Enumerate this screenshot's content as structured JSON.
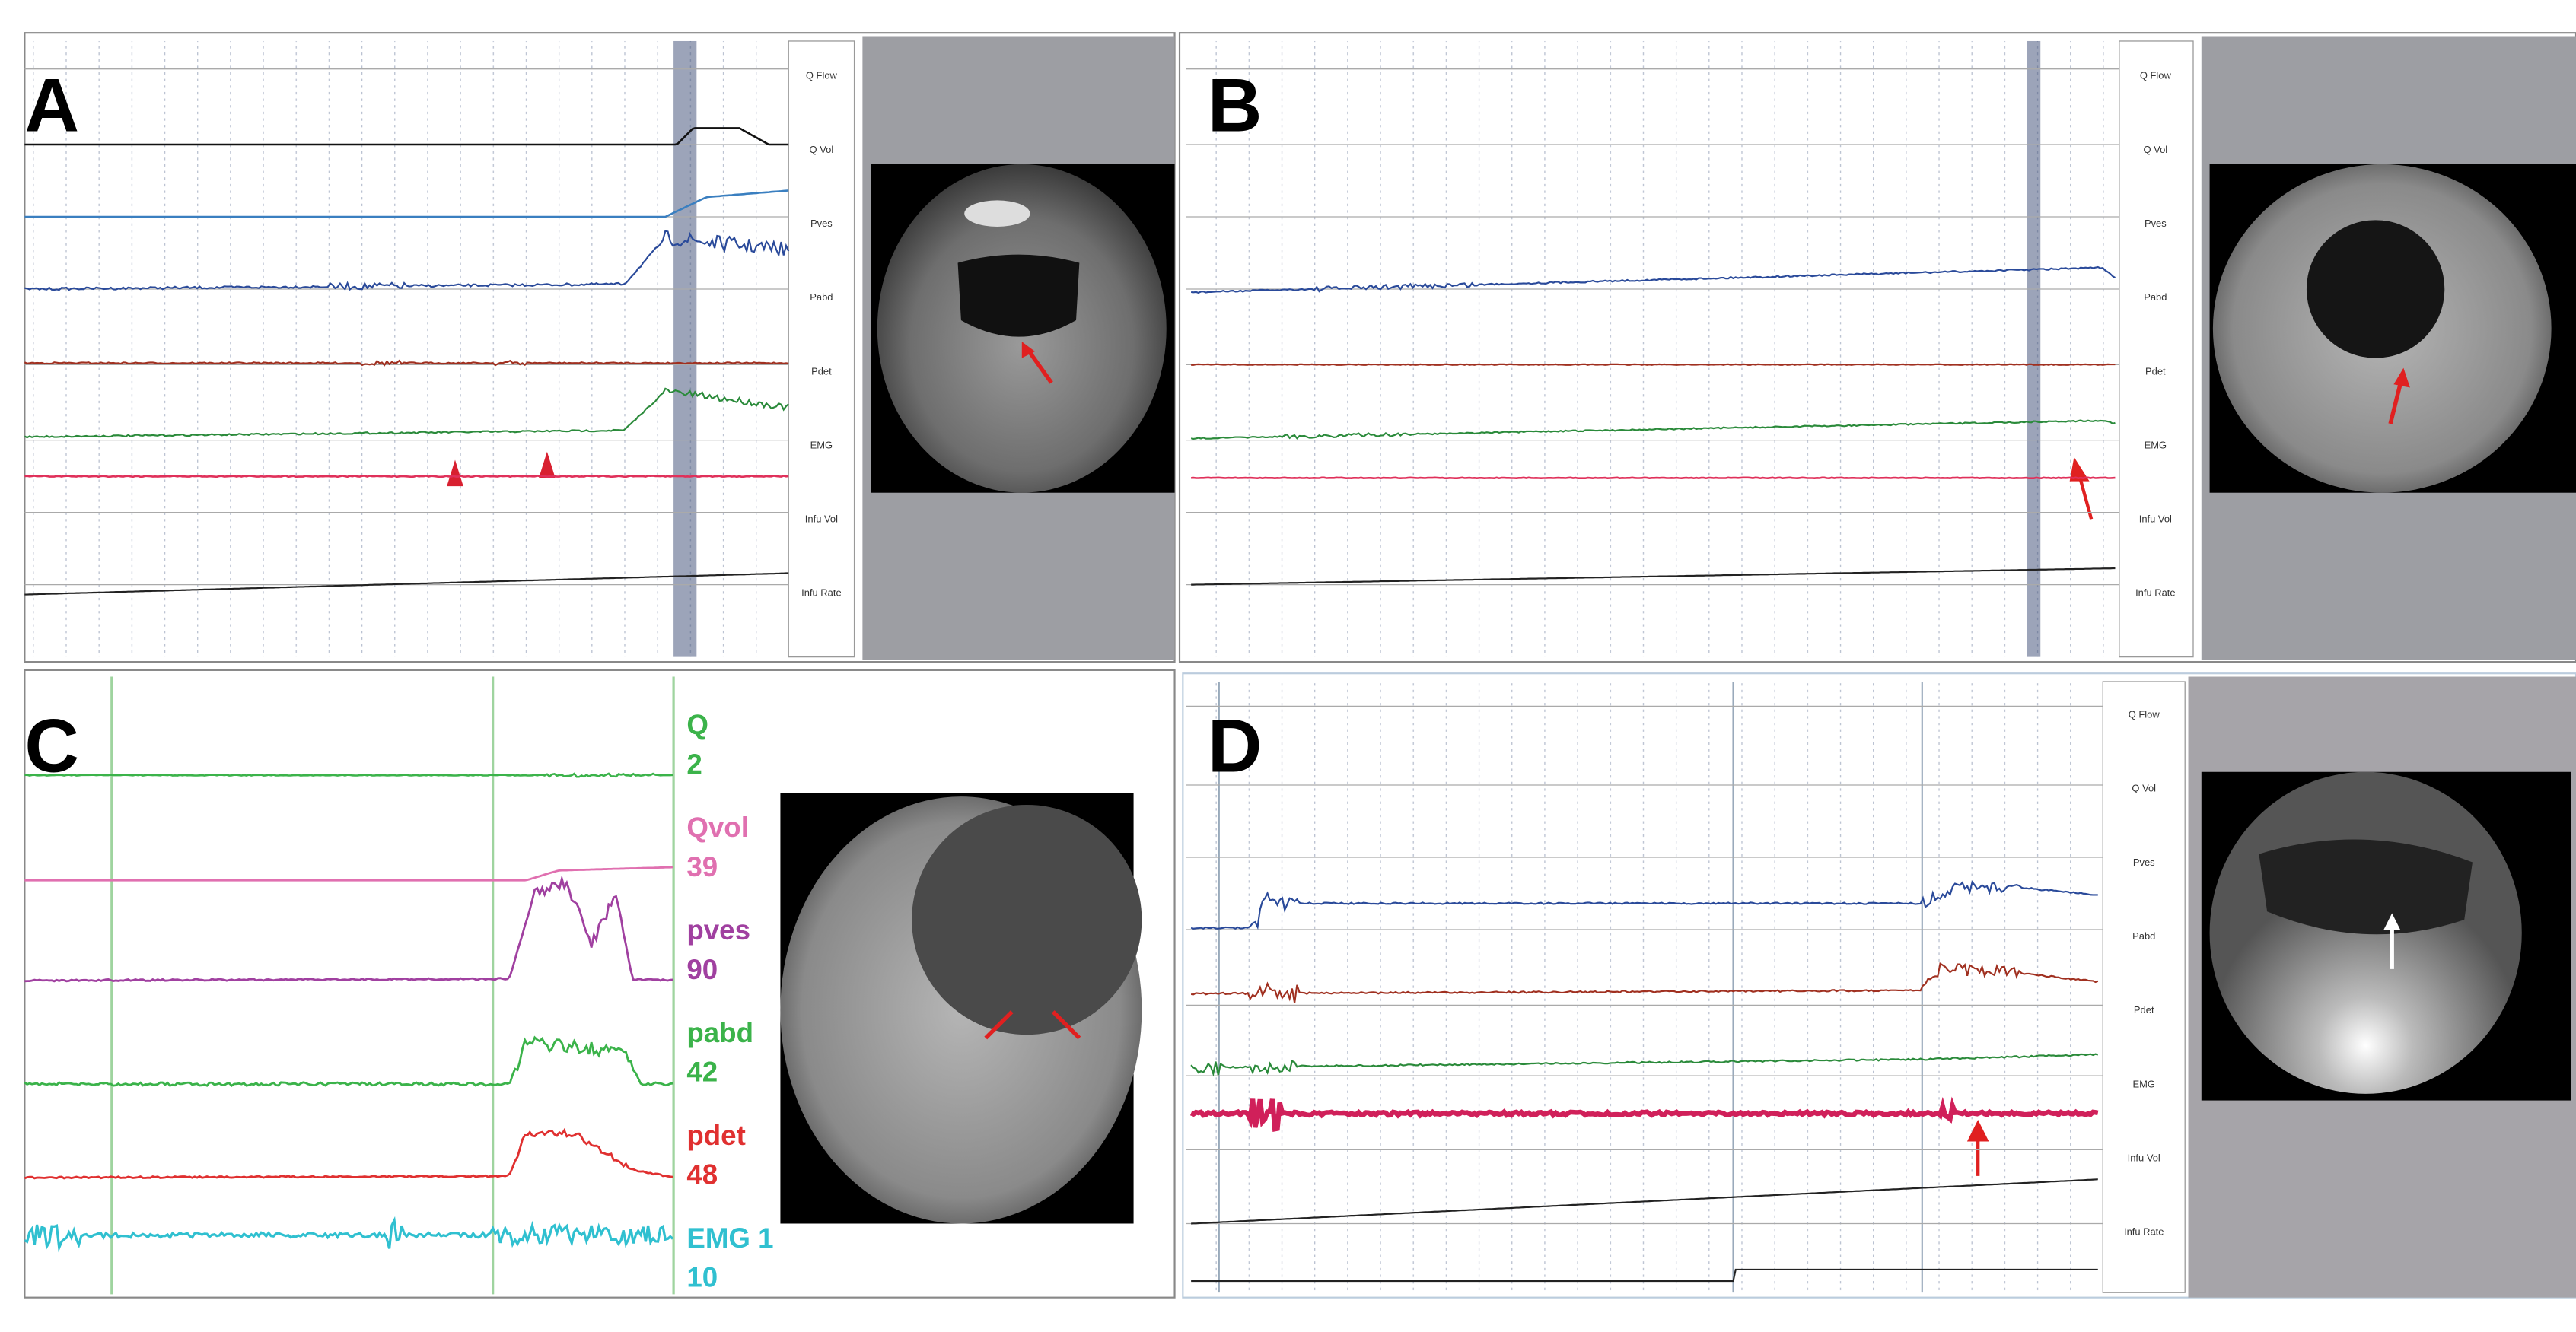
{
  "panels": [
    {
      "label": "A",
      "channels": [
        "Q Flow",
        "Q Vol",
        "Pves",
        "Pabd",
        "Pdet",
        "EMG",
        "Infu Vol",
        "Infu Rate"
      ]
    },
    {
      "label": "B",
      "channels": [
        "Q Flow",
        "Q Vol",
        "Pves",
        "Pabd",
        "Pdet",
        "EMG",
        "Infu Vol",
        "Infu Rate"
      ]
    },
    {
      "label": "C",
      "channels": [
        {
          "name": "Q",
          "value": 2
        },
        {
          "name": "Qvol",
          "value": 39
        },
        {
          "name": "pves",
          "value": 90
        },
        {
          "name": "pabd",
          "value": 42
        },
        {
          "name": "pdet",
          "value": 48
        },
        {
          "name": "EMG 1",
          "value": 10
        }
      ]
    },
    {
      "label": "D",
      "channels": [
        "Q Flow",
        "Q Vol",
        "Pves",
        "Pabd",
        "Pdet",
        "EMG",
        "Infu Vol",
        "Infu Rate"
      ]
    }
  ]
}
